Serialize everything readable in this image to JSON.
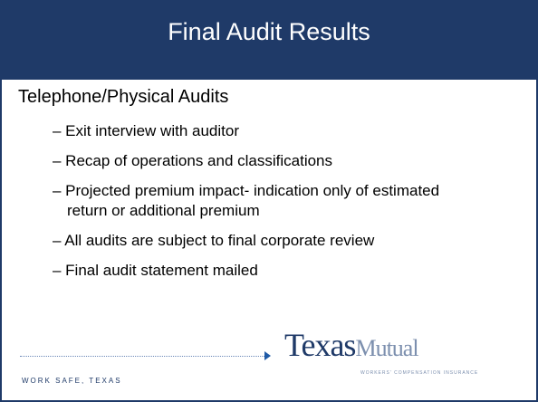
{
  "header": {
    "title": "Final Audit Results"
  },
  "body": {
    "heading": "Telephone/Physical Audits",
    "bullets": [
      "– Exit interview with auditor",
      "– Recap of operations and classifications",
      "– Projected premium impact- indication only of estimated return or additional premium",
      "– All audits are subject to final corporate review",
      "– Final audit statement mailed"
    ]
  },
  "footer": {
    "motto": "WORK SAFE, TEXAS",
    "logo_part1": "Texas",
    "logo_part2": "Mutual",
    "logo_subtitle": "WORKERS' COMPENSATION INSURANCE"
  }
}
